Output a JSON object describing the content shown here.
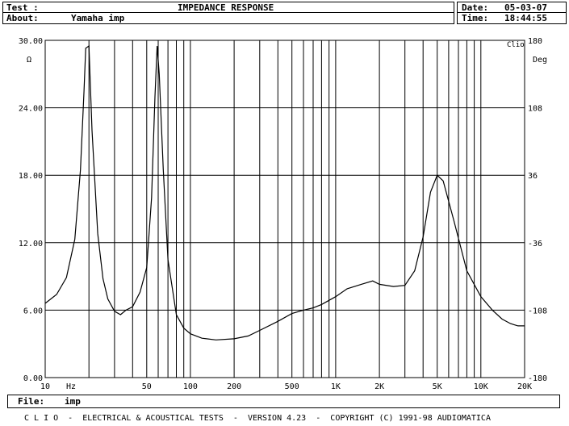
{
  "header": {
    "test_label": "Test :",
    "about_label": "About:",
    "about_value": "Yamaha imp",
    "title": "IMPEDANCE RESPONSE",
    "date_label": "Date:",
    "date_value": "05-03-07",
    "time_label": "Time:",
    "time_value": "18:44:55"
  },
  "chart_data": {
    "type": "line",
    "title": "IMPEDANCE RESPONSE",
    "x_scale": "log",
    "xlim": [
      10,
      20000
    ],
    "x_ticks": [
      10,
      50,
      100,
      200,
      500,
      1000,
      2000,
      5000,
      10000,
      20000
    ],
    "x_tick_labels": [
      "10",
      "50",
      "100",
      "200",
      "500",
      "1K",
      "2K",
      "5K",
      "10K",
      "20K"
    ],
    "x_unit_label": "Hz",
    "ylim": [
      0,
      30
    ],
    "y_ticks": [
      0,
      6,
      12,
      18,
      24,
      30
    ],
    "y_tick_labels": [
      "0.00",
      "6.00",
      "12.00",
      "18.00",
      "24.00",
      "30.00"
    ],
    "y_unit_label": "Ω",
    "y2lim": [
      -180,
      180
    ],
    "y2_tick_labels": [
      "180",
      "108",
      "36",
      "-36",
      "-108",
      "-180"
    ],
    "y2_unit_label": "Deg",
    "corner_label": "Clio",
    "grid": true,
    "series": [
      {
        "color": "#000000",
        "points": [
          [
            10,
            6.6
          ],
          [
            12,
            7.4
          ],
          [
            14,
            8.9
          ],
          [
            16,
            12.3
          ],
          [
            17.5,
            18.5
          ],
          [
            18.5,
            25.5
          ],
          [
            19,
            29.3
          ],
          [
            20,
            29.5
          ],
          [
            21,
            22.0
          ],
          [
            23,
            12.8
          ],
          [
            25,
            8.8
          ],
          [
            27,
            7.0
          ],
          [
            30,
            5.9
          ],
          [
            33,
            5.6
          ],
          [
            36,
            6.0
          ],
          [
            40,
            6.3
          ],
          [
            45,
            7.6
          ],
          [
            50,
            9.8
          ],
          [
            54,
            16.0
          ],
          [
            57,
            25.0
          ],
          [
            59,
            29.5
          ],
          [
            61,
            27.0
          ],
          [
            65,
            18.5
          ],
          [
            70,
            10.5
          ],
          [
            80,
            5.6
          ],
          [
            90,
            4.4
          ],
          [
            100,
            3.9
          ],
          [
            120,
            3.5
          ],
          [
            150,
            3.35
          ],
          [
            200,
            3.45
          ],
          [
            250,
            3.7
          ],
          [
            300,
            4.2
          ],
          [
            400,
            5.0
          ],
          [
            500,
            5.7
          ],
          [
            600,
            6.0
          ],
          [
            700,
            6.2
          ],
          [
            800,
            6.5
          ],
          [
            1000,
            7.2
          ],
          [
            1200,
            7.9
          ],
          [
            1500,
            8.3
          ],
          [
            1800,
            8.6
          ],
          [
            2000,
            8.3
          ],
          [
            2500,
            8.1
          ],
          [
            3000,
            8.2
          ],
          [
            3500,
            9.5
          ],
          [
            4000,
            12.5
          ],
          [
            4500,
            16.5
          ],
          [
            5000,
            18.0
          ],
          [
            5500,
            17.5
          ],
          [
            6500,
            14.0
          ],
          [
            8000,
            9.5
          ],
          [
            10000,
            7.2
          ],
          [
            12000,
            6.0
          ],
          [
            14000,
            5.2
          ],
          [
            16000,
            4.8
          ],
          [
            18000,
            4.6
          ],
          [
            20000,
            4.6
          ]
        ]
      }
    ]
  },
  "file": {
    "label": "File:",
    "value": "imp"
  },
  "footer": {
    "text": "C L I O  -  ELECTRICAL & ACOUSTICAL TESTS  -  VERSION 4.23  -  COPYRIGHT (C) 1991-98 AUDIOMATICA"
  }
}
